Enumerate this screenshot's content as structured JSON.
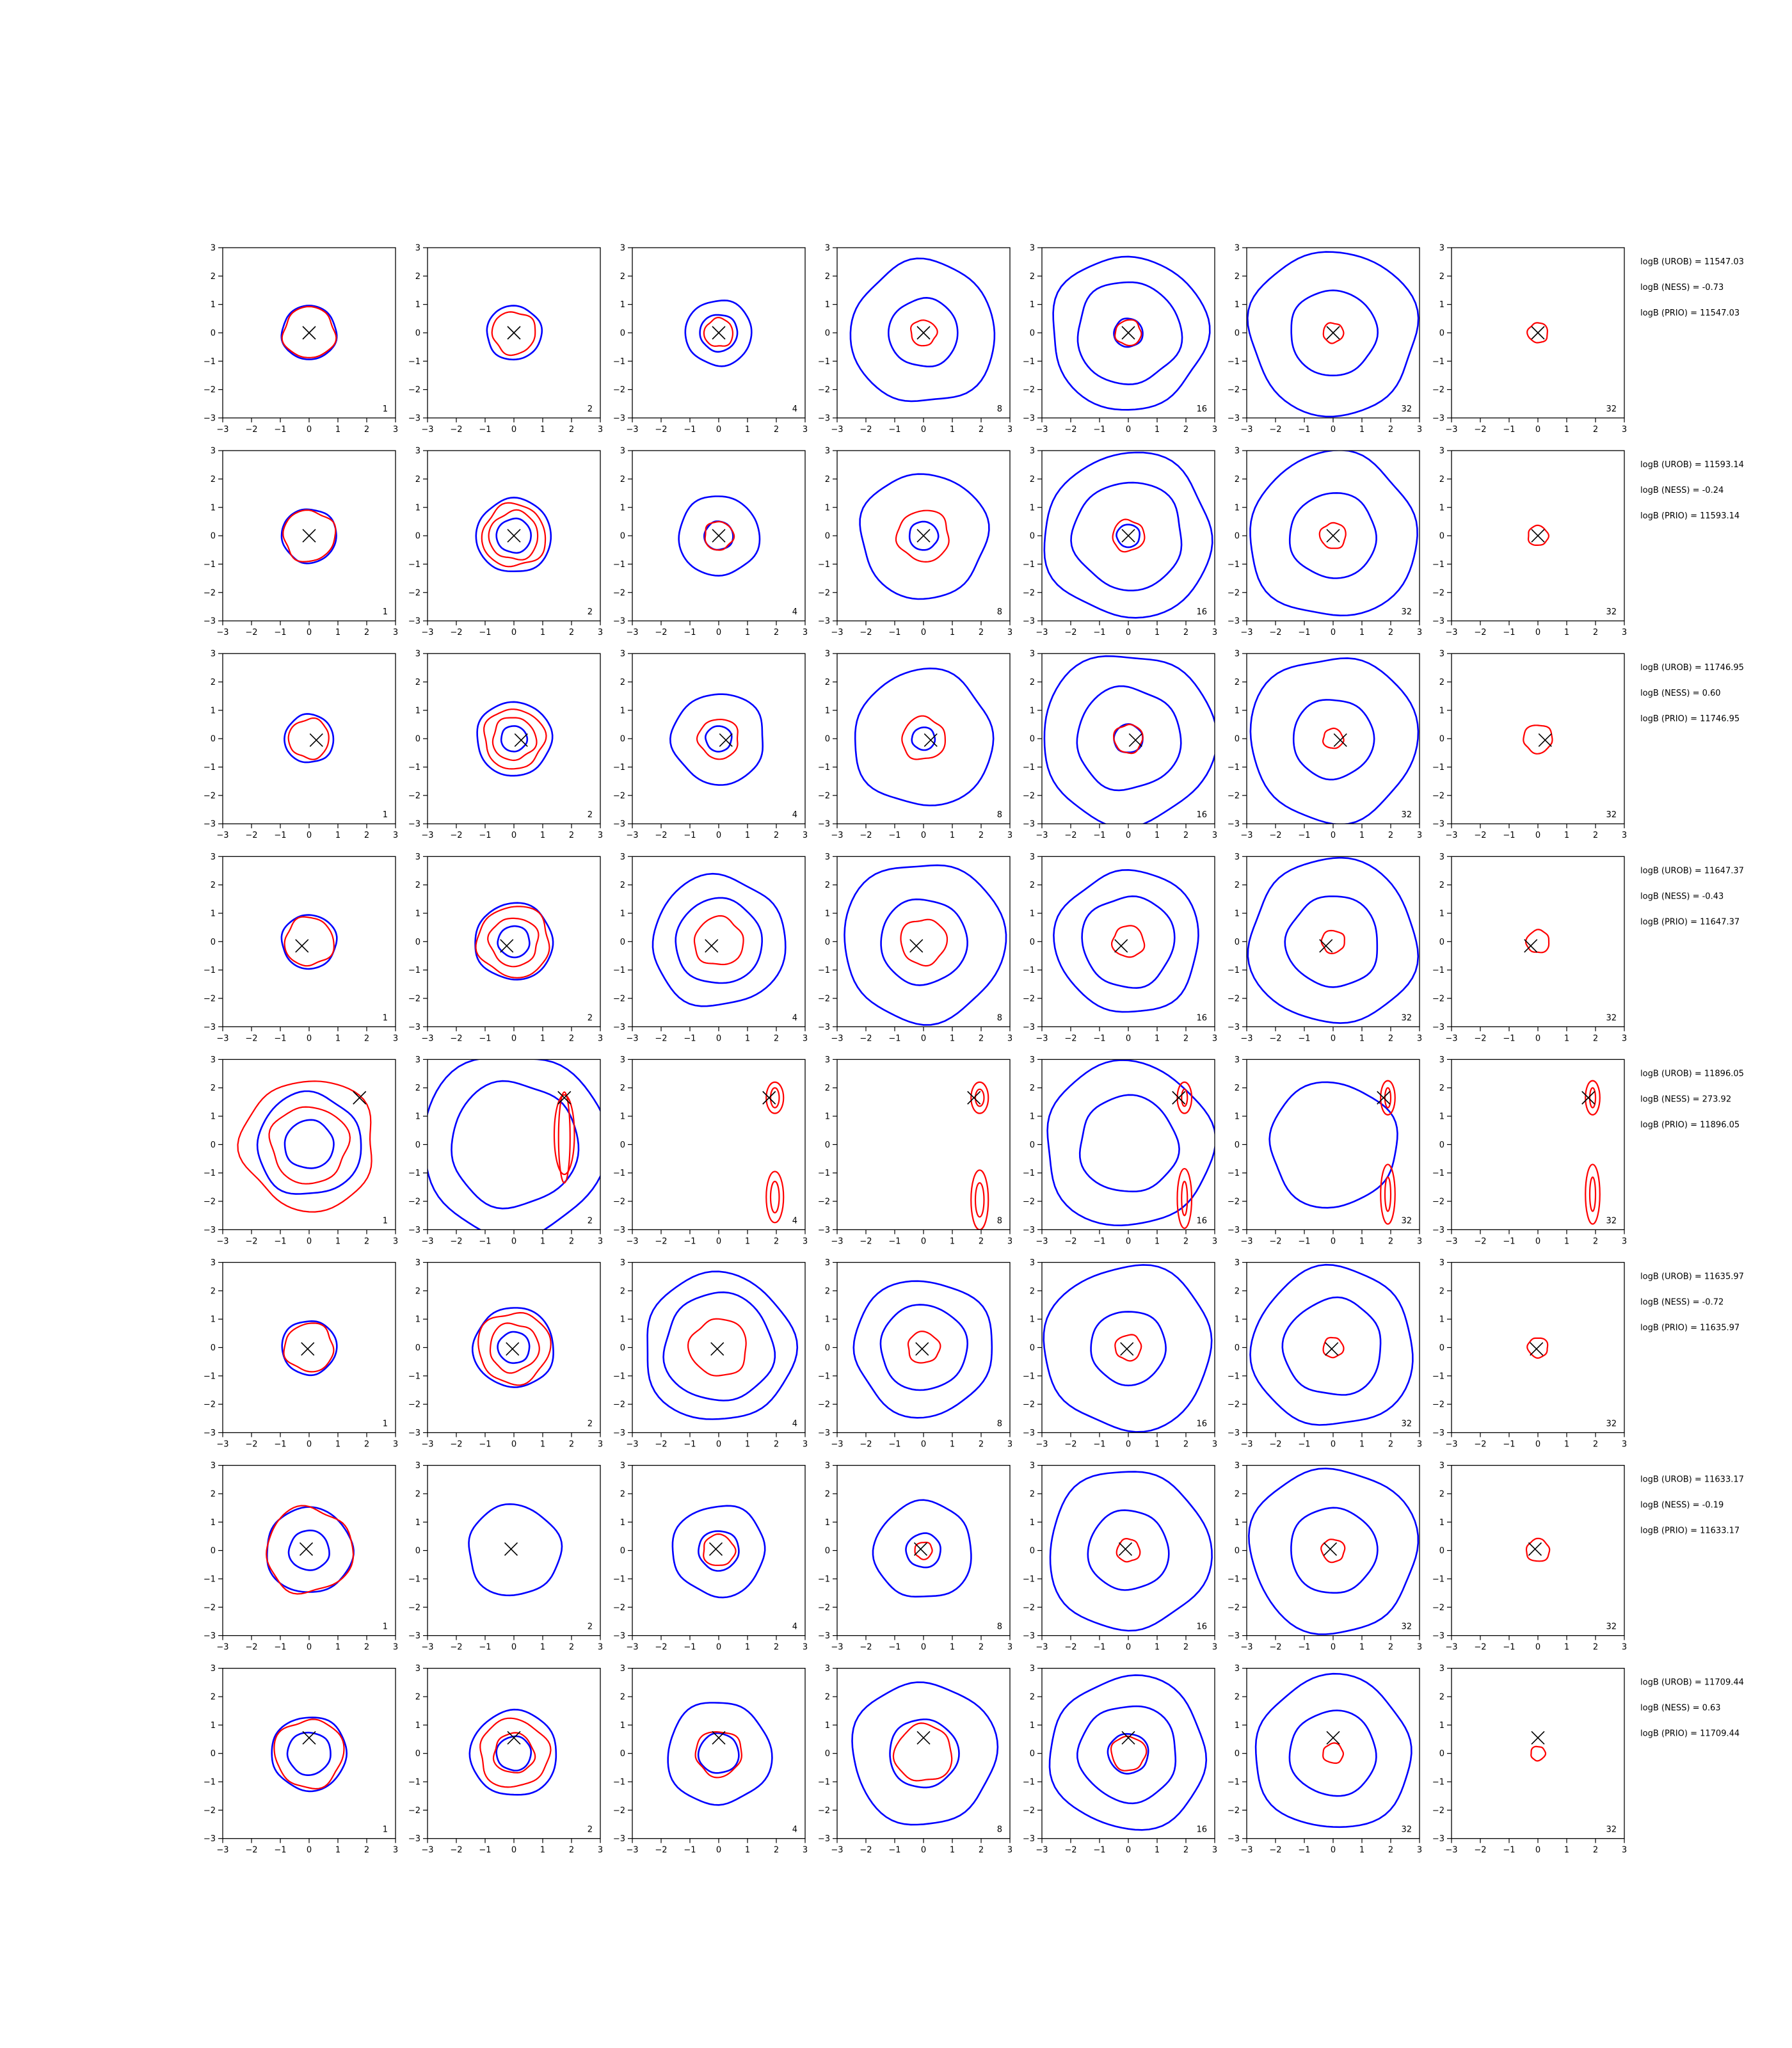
{
  "chart_data": {
    "type": "contour",
    "layout": {
      "rows": 8,
      "cols": 7
    },
    "xlim": [
      -3,
      3
    ],
    "ylim": [
      -3,
      3
    ],
    "ticks": [
      -3,
      -2,
      -1,
      0,
      1,
      2,
      3
    ],
    "tick_labels": [
      "−3",
      "−2",
      "−1",
      "0",
      "1",
      "2",
      "3"
    ],
    "column_labels": [
      "1",
      "2",
      "4",
      "8",
      "16",
      "32",
      "32"
    ],
    "colors": {
      "blue": "#0000ff",
      "red": "#ff0000",
      "marker": "#000000"
    },
    "rows": [
      {
        "marker": [
          0.0,
          0.0
        ],
        "stats": [
          "logB (UROB) = 11547.03",
          "logB (NESS) = -0.73",
          "logB (PRIO) = 11547.03"
        ],
        "blue_radii": [
          [
            0.95
          ],
          [
            0.95
          ],
          [
            0.65,
            1.15
          ],
          [
            1.2,
            2.5
          ],
          [
            0.5,
            1.8,
            2.7
          ],
          [
            1.5,
            2.9
          ],
          []
        ],
        "red_radii": [
          [
            0.9
          ],
          [
            0.75
          ],
          [
            0.5
          ],
          [
            0.45
          ],
          [
            0.45
          ],
          [
            0.35
          ],
          [
            0.35
          ]
        ]
      },
      {
        "marker": [
          0.0,
          0.0
        ],
        "stats": [
          "logB (UROB) = 11593.14",
          "logB (NESS) = -0.24",
          "logB (PRIO) = 11593.14"
        ],
        "blue_radii": [
          [
            0.95
          ],
          [
            0.6,
            1.3
          ],
          [
            0.5,
            1.4
          ],
          [
            0.5,
            2.2
          ],
          [
            0.4,
            1.9,
            2.9
          ],
          [
            1.5,
            2.9
          ],
          []
        ],
        "red_radii": [
          [
            0.9
          ],
          [
            0.85,
            1.1
          ],
          [
            0.5
          ],
          [
            0.9
          ],
          [
            0.55
          ],
          [
            0.45
          ],
          [
            0.35
          ]
        ]
      },
      {
        "marker": [
          0.25,
          -0.05
        ],
        "stats": [
          "logB (UROB) = 11746.95",
          "logB (NESS) = 0.60",
          "logB (PRIO) = 11746.95"
        ],
        "blue_radii": [
          [
            0.85
          ],
          [
            0.45,
            1.3
          ],
          [
            0.45,
            1.6
          ],
          [
            0.4,
            2.4
          ],
          [
            0.5,
            1.8,
            3.0
          ],
          [
            1.4,
            2.9
          ],
          []
        ],
        "red_radii": [
          [
            0.7
          ],
          [
            0.75,
            1.05
          ],
          [
            0.7
          ],
          [
            0.75
          ],
          [
            0.5
          ],
          [
            0.35
          ],
          [
            0.5
          ]
        ]
      },
      {
        "marker": [
          -0.25,
          -0.15
        ],
        "stats": [
          "logB (UROB) = 11647.37",
          "logB (NESS) = -0.43",
          "logB (PRIO) = 11647.37"
        ],
        "blue_radii": [
          [
            0.95
          ],
          [
            0.55,
            1.35
          ],
          [
            1.5,
            2.3
          ],
          [
            1.5,
            2.8
          ],
          [
            1.6,
            2.5
          ],
          [
            1.6,
            2.9
          ],
          []
        ],
        "red_radii": [
          [
            0.85
          ],
          [
            0.85,
            1.25
          ],
          [
            0.85
          ],
          [
            0.8
          ],
          [
            0.55
          ],
          [
            0.4
          ],
          [
            0.4
          ]
        ]
      },
      {
        "marker": [
          1.75,
          1.65
        ],
        "stats": [
          "logB (UROB) = 11896.05",
          "logB (NESS) = 273.92",
          "logB (PRIO) = 11896.05"
        ],
        "blue_radii": [
          [
            0.85,
            1.8
          ],
          [
            2.2,
            3.2
          ],
          [],
          [],
          [
            1.7,
            2.9
          ],
          [
            2.2
          ],
          []
        ],
        "red_radii": [
          [
            1.35,
            2.3
          ],
          [],
          [],
          [],
          [],
          [],
          []
        ]
      },
      {
        "marker": [
          -0.05,
          -0.05
        ],
        "stats": [
          "logB (UROB) = 11635.97",
          "logB (NESS) = -0.72",
          "logB (PRIO) = 11635.97"
        ],
        "blue_radii": [
          [
            0.95
          ],
          [
            0.55,
            1.4
          ],
          [
            1.9,
            2.6
          ],
          [
            1.5,
            2.4
          ],
          [
            1.3,
            2.9
          ],
          [
            1.7,
            2.8
          ],
          []
        ],
        "red_radii": [
          [
            0.85
          ],
          [
            0.85,
            1.25
          ],
          [
            1.0
          ],
          [
            0.55
          ],
          [
            0.45
          ],
          [
            0.35
          ],
          [
            0.35
          ]
        ]
      },
      {
        "marker": [
          -0.1,
          0.05
        ],
        "stats": [
          "logB (UROB) = 11633.17",
          "logB (NESS) = -0.19",
          "logB (PRIO) = 11633.17"
        ],
        "blue_radii": [
          [
            0.7,
            1.5
          ],
          [
            1.6
          ],
          [
            0.7,
            1.6
          ],
          [
            0.6,
            1.7
          ],
          [
            1.4,
            2.8
          ],
          [
            1.5,
            2.9
          ],
          []
        ],
        "red_radii": [
          [
            1.5
          ],
          [],
          [
            0.55
          ],
          [
            0.3
          ],
          [
            0.4
          ],
          [
            0.4
          ],
          [
            0.4
          ]
        ]
      },
      {
        "marker": [
          0.0,
          0.55
        ],
        "stats": [
          "logB (UROB) = 11709.44",
          "logB (NESS) = 0.63",
          "logB (PRIO) = 11709.44"
        ],
        "blue_radii": [
          [
            0.75,
            1.3
          ],
          [
            0.6,
            1.5
          ],
          [
            0.7,
            1.8
          ],
          [
            1.2,
            2.5
          ],
          [
            0.7,
            1.7,
            2.7
          ],
          [
            1.5,
            2.7
          ],
          []
        ],
        "red_radii": [
          [
            1.2
          ],
          [
            0.7,
            1.2
          ],
          [
            0.8
          ],
          [
            1.0
          ],
          [
            0.6
          ],
          [
            0.35
          ],
          [
            0.25
          ]
        ]
      }
    ],
    "row4_red_ellipses": [
      [],
      [
        [
          1.75,
          0.35,
          0.35,
          1.4
        ],
        [
          1.75,
          0.25,
          0.2,
          1.6
        ]
      ],
      [
        [
          1.95,
          1.65,
          0.3,
          0.55
        ],
        [
          1.95,
          1.65,
          0.15,
          0.35
        ],
        [
          1.95,
          -1.85,
          0.3,
          0.9
        ],
        [
          1.95,
          -1.85,
          0.15,
          0.55
        ]
      ],
      [
        [
          1.95,
          1.65,
          0.3,
          0.55
        ],
        [
          1.95,
          1.65,
          0.15,
          0.3
        ],
        [
          1.95,
          -1.95,
          0.3,
          1.05
        ],
        [
          1.95,
          -1.95,
          0.15,
          0.6
        ]
      ],
      [
        [
          1.95,
          1.65,
          0.25,
          0.55
        ],
        [
          1.95,
          1.65,
          0.1,
          0.3
        ],
        [
          1.95,
          -1.9,
          0.25,
          1.05
        ],
        [
          1.95,
          -1.9,
          0.1,
          0.6
        ]
      ],
      [
        [
          1.9,
          1.65,
          0.25,
          0.6
        ],
        [
          1.9,
          1.65,
          0.1,
          0.35
        ],
        [
          1.9,
          -1.75,
          0.25,
          1.05
        ],
        [
          1.9,
          -1.75,
          0.1,
          0.6
        ]
      ],
      [
        [
          1.9,
          1.65,
          0.25,
          0.6
        ],
        [
          1.9,
          1.65,
          0.1,
          0.35
        ],
        [
          1.9,
          -1.75,
          0.25,
          1.05
        ],
        [
          1.9,
          -1.75,
          0.1,
          0.6
        ]
      ]
    ]
  }
}
